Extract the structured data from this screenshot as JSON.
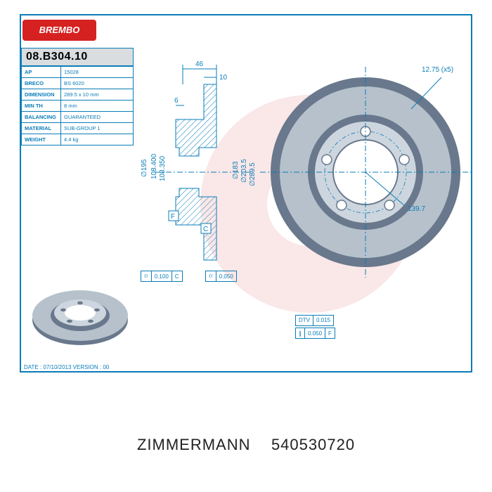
{
  "border_color": "#0a7db8",
  "background_color": "#ffffff",
  "logo": {
    "text": "BREMBO",
    "bg": "#d62121",
    "fg": "#ffffff"
  },
  "part_number": "08.B304.10",
  "specs": [
    {
      "label": "AP",
      "value": "15028"
    },
    {
      "label": "BRECO",
      "value": "BS 6020"
    },
    {
      "label": "DIMENSION",
      "value": "289.5 x 10 mm"
    },
    {
      "label": "MIN TH",
      "value": "8 mm"
    },
    {
      "label": "BALANCING",
      "value": "GUARANTEED"
    },
    {
      "label": "MATERIAL",
      "value": "SUB-GROUP 1"
    },
    {
      "label": "WEIGHT",
      "value": "4.4 kg"
    }
  ],
  "section_dims": {
    "top_a": "46",
    "top_b": "10",
    "shoulder": "6",
    "d1": "∅195",
    "d2": "108.400",
    "d3": "108.350",
    "front_d": "∅183",
    "pitch_d": "∅203.5",
    "outer_d": "∅289.5"
  },
  "front_view": {
    "pcd": "139.7",
    "hole_note": "12.75 (x5)",
    "outer_color": "#69788c",
    "face_color": "#b6c1cc",
    "hub_color": "#cdd6de",
    "holes": 5
  },
  "datums": {
    "F": "F",
    "C": "C"
  },
  "gdt": {
    "runout1": {
      "sym": "⌭",
      "tol": "0.100",
      "ref": "C"
    },
    "runout2": {
      "sym": "⌭",
      "tol": "0.050"
    },
    "dtv": {
      "label": "DTV",
      "tol": "0.015"
    },
    "par": {
      "sym": "∥",
      "tol": "0.050",
      "ref": "F"
    }
  },
  "iso_view": {
    "outer": "#69788c",
    "face": "#b6c1cc",
    "hub": "#cdd6de"
  },
  "date_version": "DATE : 07/10/2013  VERSION : 00",
  "footer": {
    "brand": "ZIMMERMANN",
    "code": "540530720",
    "color": "#222222"
  }
}
